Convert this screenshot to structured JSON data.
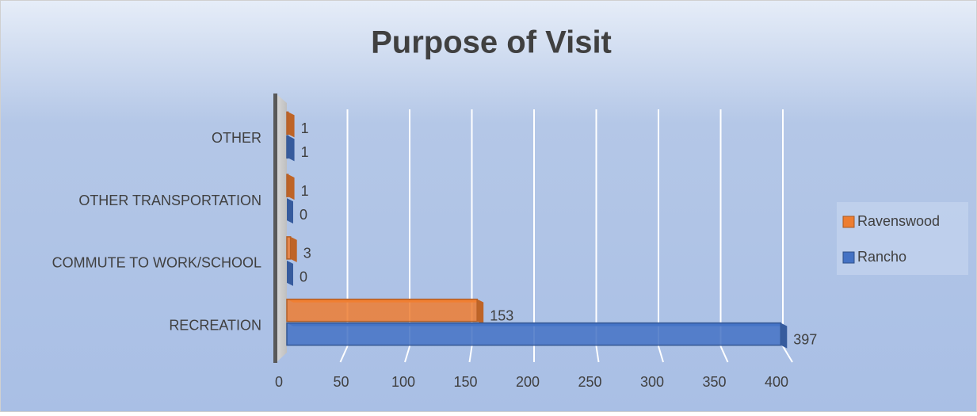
{
  "chart_data": {
    "type": "bar3d_horizontal",
    "title": "Purpose of Visit",
    "categories": [
      "RECREATION",
      "COMMUTE TO WORK/SCHOOL",
      "OTHER TRANSPORTATION",
      "OTHER"
    ],
    "series": [
      {
        "name": "Ravenswood",
        "color": "#ed7d31",
        "values": [
          153,
          3,
          1,
          1
        ]
      },
      {
        "name": "Rancho",
        "color": "#4472c4",
        "values": [
          397,
          0,
          0,
          1
        ]
      }
    ],
    "xlim": [
      0,
      400
    ],
    "xticks": [
      0,
      50,
      100,
      150,
      200,
      250,
      300,
      350,
      400
    ],
    "grid": true,
    "legend": "right"
  }
}
